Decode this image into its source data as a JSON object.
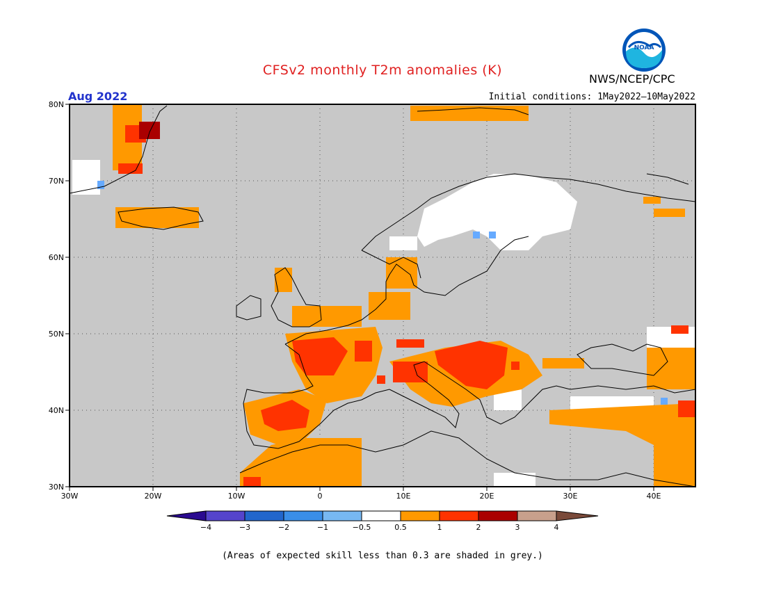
{
  "header": {
    "title": "CFSv2 monthly T2m anomalies (K)",
    "agency": "NWS/NCEP/CPC",
    "logo_text": "NOAA",
    "period": "Aug 2022",
    "initial_conditions": "Initial conditions: 1May2022—10May2022"
  },
  "map": {
    "region": "Europe",
    "lon_range": [
      -30,
      45
    ],
    "lat_range": [
      30,
      80
    ],
    "lat_ticks": [
      "80N",
      "70N",
      "60N",
      "50N",
      "40N",
      "30N"
    ],
    "lon_ticks": [
      "30W",
      "20W",
      "10W",
      "0",
      "10E",
      "20E",
      "30E",
      "40E"
    ],
    "colors": {
      "grey_low_skill": "#c8c8c8",
      "near_zero": "#ffffff",
      "warm1": "#ff9900",
      "warm2": "#ff3300",
      "warm3": "#aa0000",
      "cool1": "#66aaff"
    }
  },
  "legend": {
    "labels": [
      "−4",
      "−3",
      "−2",
      "−1",
      "−0.5",
      "0.5",
      "1",
      "2",
      "3",
      "4"
    ],
    "colors": [
      "#2a0a90",
      "#5544cc",
      "#2266cc",
      "#3a8ee8",
      "#77b8f2",
      "#ffffff",
      "#ff9900",
      "#ff3300",
      "#aa0000",
      "#c8a08c",
      "#7a4a3a"
    ]
  },
  "footer": {
    "note": "(Areas of expected skill less than 0.3 are shaded in grey.)"
  }
}
